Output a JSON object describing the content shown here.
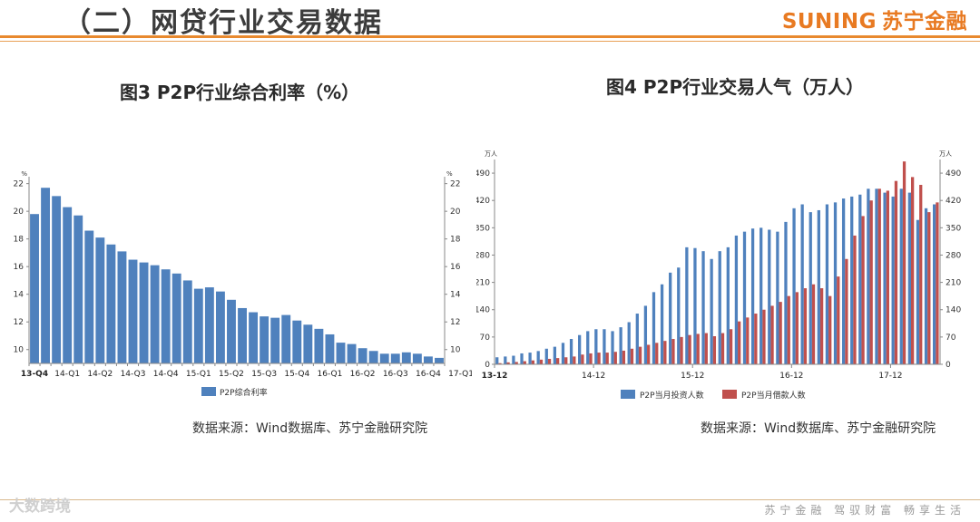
{
  "header": {
    "title": "（二）网贷行业交易数据",
    "logo_en": "SUNING",
    "logo_cn": "苏宁金融"
  },
  "footer": {
    "watermark": "大数跨境",
    "slogan": "苏宁金融 驾驭财富 畅享生活"
  },
  "colors": {
    "blue": "#4f81bd",
    "red": "#c0504d",
    "accent": "#e8892e"
  },
  "chart_data": [
    {
      "type": "bar",
      "title": "图3 P2P行业综合利率（%）",
      "source": "数据来源：Wind数据库、苏宁金融研究院",
      "unit_left": "%",
      "unit_right": "%",
      "ylim": [
        9,
        22.5
      ],
      "yticks": [
        10,
        12,
        14,
        16,
        18,
        20,
        22
      ],
      "x_tick_labels": [
        "13-Q4",
        "14-Q1",
        "14-Q2",
        "14-Q3",
        "14-Q4",
        "15-Q1",
        "15-Q2",
        "15-Q3",
        "15-Q4",
        "16-Q1",
        "16-Q2",
        "16-Q3",
        "16-Q4",
        "17-Q1"
      ],
      "legend": "bottom",
      "series": [
        {
          "name": "P2P综合利率",
          "color": "#4f81bd",
          "values": [
            19.8,
            21.7,
            21.1,
            20.3,
            19.7,
            18.6,
            18.1,
            17.6,
            17.1,
            16.5,
            16.3,
            16.1,
            15.8,
            15.5,
            15.0,
            14.4,
            14.5,
            14.2,
            13.6,
            13.0,
            12.7,
            12.4,
            12.3,
            12.5,
            12.1,
            11.8,
            11.5,
            11.1,
            10.5,
            10.4,
            10.1,
            9.9,
            9.7,
            9.7,
            9.8,
            9.7,
            9.5,
            9.4
          ]
        }
      ]
    },
    {
      "type": "bar",
      "title": "图4 P2P行业交易人气（万人）",
      "source": "数据来源：Wind数据库、苏宁金融研究院",
      "unit_left": "万人",
      "unit_right": "万人",
      "ylim": [
        0,
        525
      ],
      "yticks": [
        0,
        70,
        140,
        210,
        280,
        350,
        420,
        490
      ],
      "x_tick_labels": [
        "13-12",
        "14-12",
        "15-12",
        "16-12",
        "17-12"
      ],
      "legend": "bottom",
      "series": [
        {
          "name": "P2P当月投资人数",
          "color": "#4f81bd",
          "values": [
            18,
            20,
            22,
            28,
            30,
            34,
            40,
            45,
            55,
            65,
            75,
            85,
            90,
            90,
            85,
            95,
            108,
            130,
            150,
            185,
            205,
            235,
            248,
            300,
            298,
            290,
            270,
            290,
            300,
            330,
            340,
            348,
            350,
            345,
            340,
            365,
            400,
            410,
            390,
            395,
            410,
            415,
            425,
            430,
            435,
            450,
            450,
            440,
            430,
            450,
            440,
            370,
            400,
            410
          ]
        },
        {
          "name": "P2P当月借款人数",
          "color": "#c0504d",
          "values": [
            3,
            5,
            6,
            8,
            10,
            12,
            14,
            16,
            18,
            20,
            25,
            28,
            30,
            30,
            32,
            35,
            40,
            45,
            50,
            55,
            60,
            65,
            70,
            75,
            78,
            80,
            72,
            80,
            90,
            110,
            120,
            130,
            140,
            150,
            160,
            175,
            185,
            195,
            205,
            195,
            175,
            225,
            270,
            330,
            380,
            420,
            450,
            445,
            470,
            520,
            480,
            460,
            390,
            415
          ]
        }
      ]
    }
  ]
}
